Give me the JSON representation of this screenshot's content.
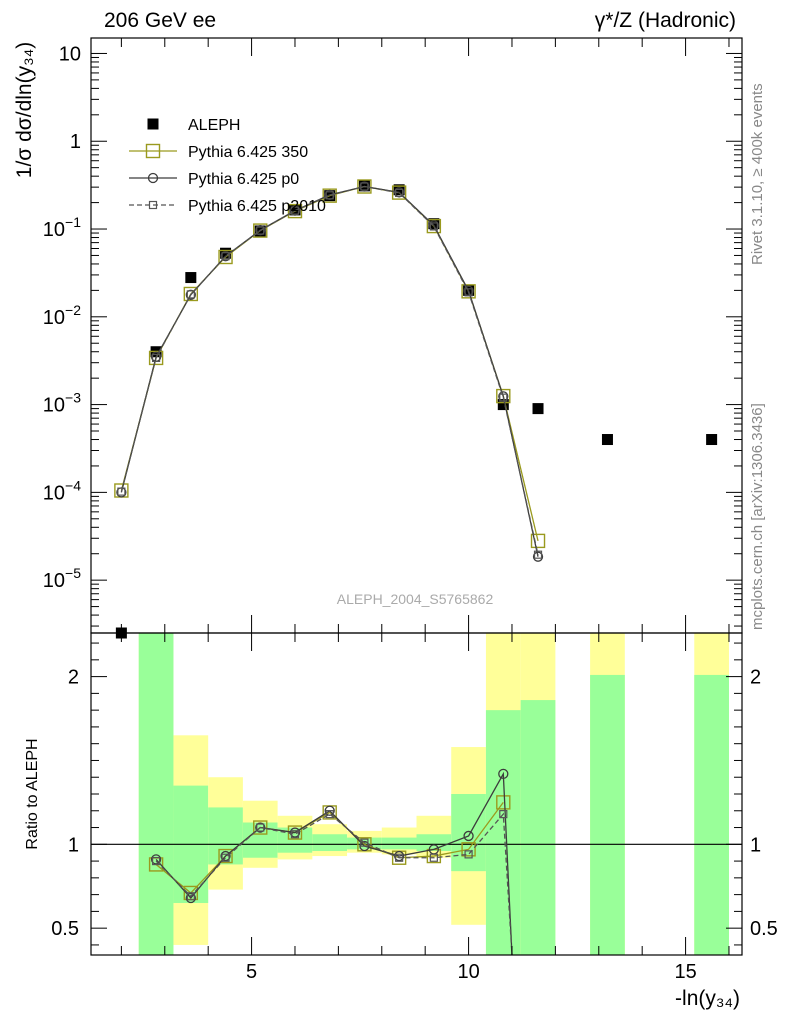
{
  "header": {
    "left": "206 GeV ee",
    "right": "γ*/Z (Hadronic)"
  },
  "side_text": {
    "rivet": "Rivet 3.1.10, ≥ 400k events",
    "source": "mcplots.cern.ch [arXiv:1306.3436]"
  },
  "chart_data": [
    {
      "type": "scatter",
      "panel": "main",
      "ylabel": "1/σ  dσ/dln(y₃₄)",
      "yscale": "log",
      "ylim": [
        2.5e-06,
        15
      ],
      "xlim": [
        1.3,
        16.3
      ],
      "yticks": [
        {
          "value": 10,
          "label": "10"
        },
        {
          "value": 1,
          "label": "1"
        },
        {
          "value": 0.1,
          "label": "10",
          "exp": "−1"
        },
        {
          "value": 0.01,
          "label": "10",
          "exp": "−2"
        },
        {
          "value": 0.001,
          "label": "10",
          "exp": "−3"
        },
        {
          "value": 0.0001,
          "label": "10",
          "exp": "−4"
        },
        {
          "value": 1e-05,
          "label": "10",
          "exp": "−5"
        }
      ],
      "watermark": "ALEPH_2004_S5765862",
      "legend": [
        {
          "name": "ALEPH",
          "marker": "filled-square"
        },
        {
          "name": "Pythia 6.425 350",
          "marker": "open-square"
        },
        {
          "name": "Pythia 6.425 p0",
          "marker": "open-circle"
        },
        {
          "name": "Pythia 6.425 p2010",
          "marker": "small-square-dashed"
        }
      ],
      "series": [
        {
          "name": "ALEPH",
          "color": "#000000",
          "x": [
            2.0,
            2.8,
            3.6,
            4.4,
            5.2,
            6.0,
            6.8,
            7.6,
            8.4,
            9.2,
            10.0,
            10.8,
            11.6,
            13.2,
            15.6
          ],
          "y": [
            2.5e-06,
            0.004,
            0.028,
            0.053,
            0.095,
            0.165,
            0.24,
            0.31,
            0.28,
            0.115,
            0.02,
            0.001,
            0.0009,
            0.0004,
            0.0004
          ]
        },
        {
          "name": "Pythia 6.425 350",
          "color": "#9a9a1e",
          "x": [
            2.0,
            2.8,
            3.6,
            4.4,
            5.2,
            6.0,
            6.8,
            7.6,
            8.4,
            9.2,
            10.0,
            10.8,
            11.6
          ],
          "y": [
            0.000105,
            0.0034,
            0.0182,
            0.048,
            0.096,
            0.16,
            0.24,
            0.305,
            0.26,
            0.108,
            0.0195,
            0.00125,
            2.8e-05
          ]
        },
        {
          "name": "Pythia 6.425 p0",
          "color": "#3c3c3c",
          "x": [
            2.0,
            2.8,
            3.6,
            4.4,
            5.2,
            6.0,
            6.8,
            7.6,
            8.4,
            9.2,
            10.0,
            10.8,
            11.6
          ],
          "y": [
            0.0001,
            0.0035,
            0.0178,
            0.049,
            0.097,
            0.162,
            0.245,
            0.305,
            0.262,
            0.11,
            0.0198,
            0.00124,
            1.85e-05
          ]
        },
        {
          "name": "Pythia 6.425 p2010",
          "color": "#555555",
          "x": [
            2.0,
            2.8,
            3.6,
            4.4,
            5.2,
            6.0,
            6.8,
            7.6,
            8.4,
            9.2,
            10.0,
            10.8,
            11.6
          ],
          "y": [
            0.000102,
            0.0034,
            0.018,
            0.049,
            0.096,
            0.162,
            0.242,
            0.305,
            0.258,
            0.107,
            0.019,
            0.0012,
            1.95e-05
          ]
        }
      ]
    },
    {
      "type": "line",
      "panel": "ratio",
      "ylabel": "Ratio to ALEPH",
      "xlabel": "-ln(y₃₄)",
      "ylim": [
        0.34,
        2.26
      ],
      "xlim": [
        1.3,
        16.3
      ],
      "xticks": [
        5,
        10,
        15
      ],
      "yticks": [
        0.5,
        1,
        2
      ],
      "reference": 1,
      "bands": [
        {
          "x0": 2.4,
          "x1": 3.2,
          "yellow": [
            0.34,
            2.26
          ],
          "green": [
            0.34,
            2.26
          ]
        },
        {
          "x0": 3.2,
          "x1": 4.0,
          "yellow": [
            0.4,
            1.65
          ],
          "green": [
            0.65,
            1.35
          ]
        },
        {
          "x0": 4.0,
          "x1": 4.8,
          "yellow": [
            0.73,
            1.4
          ],
          "green": [
            0.88,
            1.22
          ]
        },
        {
          "x0": 4.8,
          "x1": 5.6,
          "yellow": [
            0.86,
            1.26
          ],
          "green": [
            0.92,
            1.13
          ]
        },
        {
          "x0": 5.6,
          "x1": 6.4,
          "yellow": [
            0.91,
            1.17
          ],
          "green": [
            0.95,
            1.1
          ]
        },
        {
          "x0": 6.4,
          "x1": 7.2,
          "yellow": [
            0.93,
            1.12
          ],
          "green": [
            0.96,
            1.06
          ]
        },
        {
          "x0": 7.2,
          "x1": 8.0,
          "yellow": [
            0.95,
            1.08
          ],
          "green": [
            0.97,
            1.04
          ]
        },
        {
          "x0": 8.0,
          "x1": 8.8,
          "yellow": [
            0.94,
            1.1
          ],
          "green": [
            0.97,
            1.04
          ]
        },
        {
          "x0": 8.8,
          "x1": 9.6,
          "yellow": [
            0.92,
            1.17
          ],
          "green": [
            0.96,
            1.06
          ]
        },
        {
          "x0": 9.6,
          "x1": 10.4,
          "yellow": [
            0.52,
            1.58
          ],
          "green": [
            0.84,
            1.3
          ]
        },
        {
          "x0": 10.4,
          "x1": 11.2,
          "yellow": [
            0.34,
            2.26
          ],
          "green": [
            0.34,
            1.8
          ]
        },
        {
          "x0": 11.2,
          "x1": 12.0,
          "yellow": [
            0.34,
            2.26
          ],
          "green": [
            0.34,
            1.86
          ]
        },
        {
          "x0": 12.8,
          "x1": 13.6,
          "yellow": [
            0.34,
            2.26
          ],
          "green": [
            0.34,
            2.01
          ]
        },
        {
          "x0": 15.2,
          "x1": 16.0,
          "yellow": [
            0.34,
            2.26
          ],
          "green": [
            0.34,
            2.01
          ]
        }
      ],
      "series": [
        {
          "name": "Pythia 6.425 350",
          "color": "#9a9a1e",
          "x": [
            2.8,
            3.6,
            4.4,
            5.2,
            6.0,
            6.8,
            7.6,
            8.4,
            9.2,
            10.0,
            10.8
          ],
          "y": [
            0.88,
            0.71,
            0.93,
            1.1,
            1.07,
            1.19,
            1.0,
            0.92,
            0.93,
            0.97,
            1.25
          ]
        },
        {
          "name": "Pythia 6.425 p0",
          "color": "#3c3c3c",
          "x": [
            2.8,
            3.6,
            4.4,
            5.2,
            6.0,
            6.8,
            7.6,
            8.4,
            9.2,
            10.0,
            10.8,
            11.0
          ],
          "y": [
            0.91,
            0.68,
            0.93,
            1.1,
            1.07,
            1.2,
            0.99,
            0.93,
            0.97,
            1.05,
            1.42,
            0.34
          ]
        },
        {
          "name": "Pythia 6.425 p2010",
          "color": "#555555",
          "x": [
            2.8,
            3.6,
            4.4,
            5.2,
            6.0,
            6.8,
            7.6,
            8.4,
            9.2,
            10.0,
            10.8,
            11.0
          ],
          "y": [
            0.9,
            0.69,
            0.92,
            1.1,
            1.06,
            1.18,
            1.01,
            0.92,
            0.92,
            0.94,
            1.18,
            0.34
          ]
        }
      ]
    }
  ]
}
